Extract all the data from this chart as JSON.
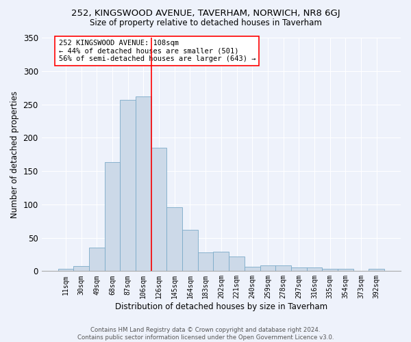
{
  "title1": "252, KINGSWOOD AVENUE, TAVERHAM, NORWICH, NR8 6GJ",
  "title2": "Size of property relative to detached houses in Taverham",
  "xlabel": "Distribution of detached houses by size in Taverham",
  "ylabel": "Number of detached properties",
  "bin_labels": [
    "11sqm",
    "30sqm",
    "49sqm",
    "68sqm",
    "87sqm",
    "106sqm",
    "126sqm",
    "145sqm",
    "164sqm",
    "183sqm",
    "202sqm",
    "221sqm",
    "240sqm",
    "259sqm",
    "278sqm",
    "297sqm",
    "316sqm",
    "335sqm",
    "354sqm",
    "373sqm",
    "392sqm"
  ],
  "bar_values": [
    3,
    8,
    35,
    163,
    257,
    262,
    185,
    96,
    62,
    28,
    29,
    22,
    6,
    9,
    9,
    5,
    5,
    3,
    3,
    0,
    3
  ],
  "bar_color": "#ccd9e8",
  "bar_edge_color": "#7aaac8",
  "vline_x": 5.5,
  "vline_color": "red",
  "annotation_text": "252 KINGSWOOD AVENUE: 108sqm\n← 44% of detached houses are smaller (501)\n56% of semi-detached houses are larger (643) →",
  "annotation_box_color": "white",
  "annotation_box_edge": "red",
  "ylim": [
    0,
    350
  ],
  "yticks": [
    0,
    50,
    100,
    150,
    200,
    250,
    300,
    350
  ],
  "footnote": "Contains HM Land Registry data © Crown copyright and database right 2024.\nContains public sector information licensed under the Open Government Licence v3.0.",
  "bg_color": "#eef2fb",
  "grid_color": "#ffffff",
  "title1_fontsize": 9.5,
  "title2_fontsize": 8.5,
  "xlabel_fontsize": 8.5,
  "ylabel_fontsize": 8.5,
  "xtick_fontsize": 7.0,
  "ytick_fontsize": 8.5,
  "annotation_fontsize": 7.5,
  "footnote_fontsize": 6.2
}
